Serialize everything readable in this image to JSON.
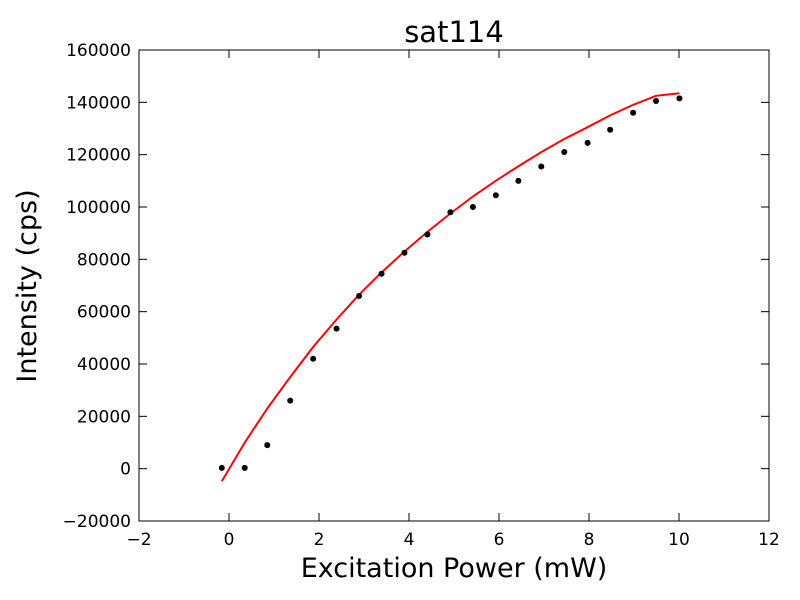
{
  "chart_data": {
    "type": "scatter",
    "title": "sat114",
    "xlabel": "Excitation Power (mW)",
    "ylabel": "Intensity (cps)",
    "xlim": [
      -2,
      12
    ],
    "ylim": [
      -20000,
      160000
    ],
    "xticks": [
      -2,
      0,
      2,
      4,
      6,
      8,
      10,
      12
    ],
    "yticks": [
      -20000,
      0,
      20000,
      40000,
      60000,
      80000,
      100000,
      120000,
      140000,
      160000
    ],
    "xtick_labels": [
      "−2",
      "0",
      "2",
      "4",
      "6",
      "8",
      "10",
      "12"
    ],
    "ytick_labels": [
      "−20000",
      "0",
      "20000",
      "40000",
      "60000",
      "80000",
      "100000",
      "120000",
      "140000",
      "160000"
    ],
    "grid": false,
    "legend": false,
    "series": [
      {
        "kind": "points",
        "color": "#000000",
        "x": [
          -0.16,
          0.35,
          0.85,
          1.36,
          1.87,
          2.39,
          2.89,
          3.39,
          3.9,
          4.41,
          4.92,
          5.42,
          5.93,
          6.43,
          6.94,
          7.45,
          7.97,
          8.47,
          8.98,
          9.49,
          10.01
        ],
        "y": [
          300,
          300,
          9000,
          26000,
          42000,
          53500,
          66000,
          74500,
          82500,
          89500,
          98000,
          100000,
          104500,
          110000,
          115500,
          121000,
          124500,
          129500,
          136000,
          140500,
          141500
        ]
      },
      {
        "kind": "fit",
        "color": "#ff0000",
        "x": [
          -0.16,
          0.35,
          0.85,
          1.36,
          1.87,
          2.39,
          2.89,
          3.39,
          3.9,
          4.41,
          4.92,
          5.42,
          5.93,
          6.43,
          6.94,
          7.45,
          7.97,
          8.47,
          8.98,
          9.49,
          10.01
        ],
        "y": [
          -4800,
          10000,
          23000,
          35000,
          46500,
          57000,
          66500,
          75000,
          83000,
          90500,
          97500,
          104000,
          110000,
          115500,
          121000,
          126000,
          130500,
          135000,
          139000,
          142500,
          143500
        ]
      }
    ]
  }
}
